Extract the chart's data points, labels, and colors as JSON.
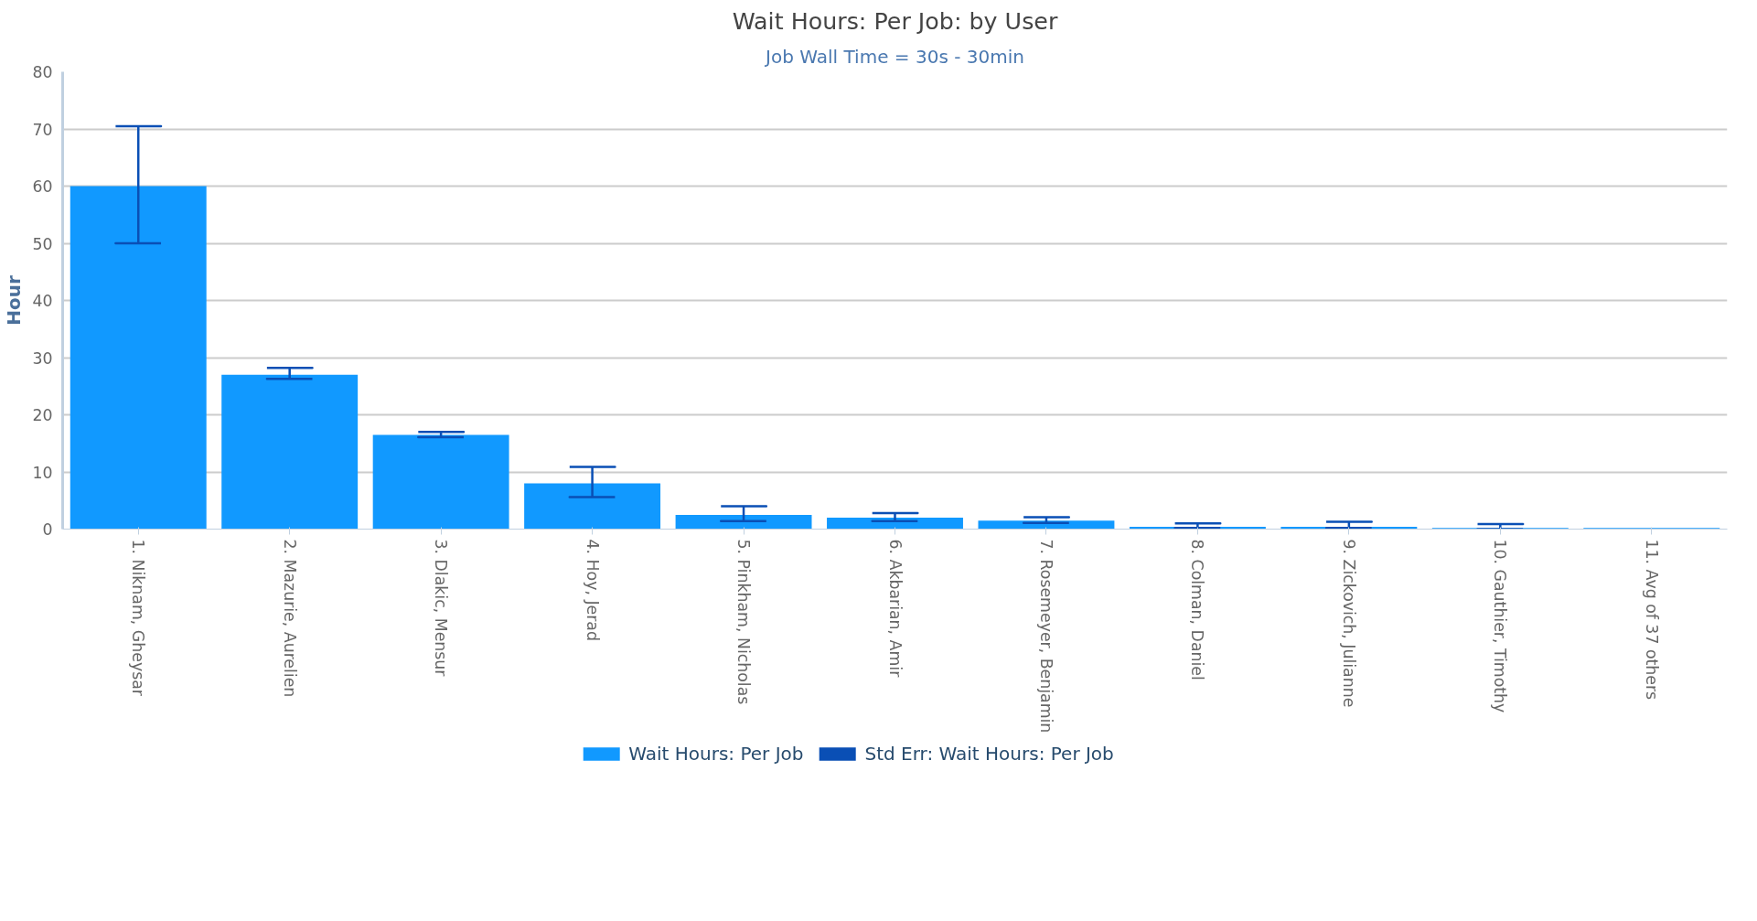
{
  "chart_data": {
    "type": "bar",
    "title": "Wait Hours: Per Job: by User",
    "subtitle": "Job Wall Time = 30s - 30min",
    "ylabel": "Hour",
    "categories": [
      "1. Niknam, Gheysar",
      "2. Mazurie, Aurelien",
      "3. Dlakic, Mensur",
      "4. Hoy, Jerad",
      "5. Pinkham, Nicholas",
      "6. Akbarian, Amir",
      "7. Rosemeyer, Benjamin",
      "8. Colman, Daniel",
      "9. Zickovich, Julianne",
      "10. Gauthier, Timothy",
      "11. Avg of 37 others"
    ],
    "series": [
      {
        "name": "Wait Hours: Per Job",
        "color": "#1199ff",
        "values": [
          60,
          27,
          16.5,
          8,
          2.5,
          2,
          1.5,
          0.4,
          0.4,
          0.2,
          0.2
        ],
        "errors": [
          [
            50,
            70.5
          ],
          [
            26.3,
            28.2
          ],
          [
            16.1,
            17
          ],
          [
            5.6,
            10.9
          ],
          [
            1.4,
            4
          ],
          [
            1.4,
            2.8
          ],
          [
            1.1,
            2.1
          ],
          [
            0.2,
            1
          ],
          [
            0.2,
            1.3
          ],
          [
            0,
            0.9
          ],
          null
        ]
      },
      {
        "name": "Std Err: Wait Hours: Per Job",
        "color": "#0a4fb5",
        "values": [
          null,
          null,
          null,
          null,
          null,
          null,
          null,
          null,
          null,
          null,
          null
        ]
      }
    ],
    "ylim": [
      0,
      80
    ],
    "yticks": [
      0,
      10,
      20,
      30,
      40,
      50,
      60,
      70,
      80
    ],
    "grid": "y",
    "legend": "bottom"
  }
}
